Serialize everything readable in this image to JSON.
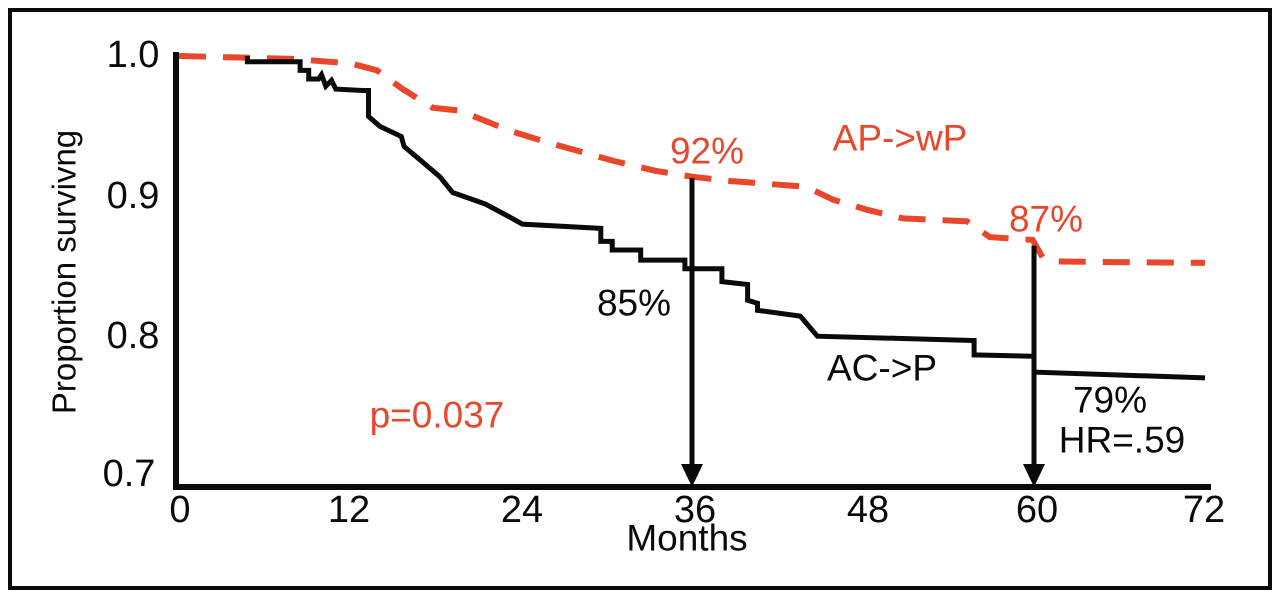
{
  "figure": {
    "y_axis": {
      "label": "Proportion survivng",
      "ticks": [
        "1.0",
        "0.9",
        "0.8",
        "0.7"
      ]
    },
    "x_axis": {
      "label": "Months",
      "ticks": [
        "0",
        "12",
        "24",
        "36",
        "48",
        "60",
        "72"
      ]
    },
    "annotations": {
      "red_36_pct": "92%",
      "red_60_pct": "87%",
      "black_36_pct": "85%",
      "black_60_pct": "79%",
      "hazard_ratio": "HR=.59",
      "p_value": "p=0.037",
      "red_series": "AP->wP",
      "black_series": "AC->P"
    },
    "colors": {
      "red": "#E8472C",
      "black": "#0a0a0a"
    }
  },
  "chart_data": {
    "type": "line",
    "subtype": "kaplan-meier-step",
    "xlabel": "Months",
    "ylabel": "Proportion survivng",
    "xlim": [
      0,
      72
    ],
    "ylim": [
      0.7,
      1.0
    ],
    "x_ticks": [
      0,
      12,
      24,
      36,
      48,
      60,
      72
    ],
    "y_ticks": [
      1.0,
      0.9,
      0.8,
      0.7
    ],
    "grid": false,
    "legend_position": "inline-labels",
    "p_value": 0.037,
    "hazard_ratio": 0.59,
    "annotations": [
      {
        "text": "92%",
        "series": "AP->wP",
        "x": 36,
        "y": 0.92,
        "color": "red"
      },
      {
        "text": "87%",
        "series": "AP->wP",
        "x": 60,
        "y": 0.87,
        "color": "red"
      },
      {
        "text": "85%",
        "series": "AC->P",
        "x": 36,
        "y": 0.85,
        "color": "black"
      },
      {
        "text": "79%",
        "series": "AC->P",
        "x": 60,
        "y": 0.79,
        "color": "black"
      },
      {
        "text": "HR=.59",
        "x": 62,
        "y": 0.77,
        "color": "black"
      },
      {
        "text": "p=0.037",
        "x": 14,
        "y": 0.745,
        "color": "red"
      }
    ],
    "series": [
      {
        "name": "AP->wP",
        "color": "#E8472C",
        "style": "dashed",
        "points": [
          [
            0,
            1.0
          ],
          [
            8.0,
            0.998
          ],
          [
            10.5,
            0.996
          ],
          [
            12.0,
            0.995
          ],
          [
            13.9,
            0.99
          ],
          [
            15.7,
            0.977
          ],
          [
            17.8,
            0.964
          ],
          [
            19.7,
            0.962
          ],
          [
            23.2,
            0.948
          ],
          [
            25.8,
            0.94
          ],
          [
            30.5,
            0.927
          ],
          [
            33.5,
            0.92
          ],
          [
            36.0,
            0.916
          ],
          [
            38.7,
            0.913
          ],
          [
            44.0,
            0.909
          ],
          [
            45.9,
            0.9
          ],
          [
            48.3,
            0.893
          ],
          [
            50.8,
            0.887
          ],
          [
            55.3,
            0.885
          ],
          [
            56.9,
            0.874
          ],
          [
            59.9,
            0.872
          ],
          [
            60.6,
            0.86
          ],
          [
            61.5,
            0.857
          ],
          [
            72.0,
            0.856
          ]
        ]
      },
      {
        "name": "AC->P",
        "color": "#0a0a0a",
        "style": "solid",
        "points": [
          [
            4.8,
            1.0
          ],
          [
            4.8,
            0.996
          ],
          [
            8.5,
            0.996
          ],
          [
            8.5,
            0.99
          ],
          [
            9.1,
            0.99
          ],
          [
            9.1,
            0.984
          ],
          [
            9.8,
            0.984
          ],
          [
            10.0,
            0.987
          ],
          [
            10.3,
            0.979
          ],
          [
            10.7,
            0.983
          ],
          [
            11.0,
            0.977
          ],
          [
            12.9,
            0.976
          ],
          [
            13.3,
            0.976
          ],
          [
            13.3,
            0.958
          ],
          [
            14.1,
            0.951
          ],
          [
            15.6,
            0.944
          ],
          [
            15.8,
            0.937
          ],
          [
            17.0,
            0.927
          ],
          [
            18.3,
            0.916
          ],
          [
            19.2,
            0.905
          ],
          [
            21.5,
            0.897
          ],
          [
            23.0,
            0.889
          ],
          [
            24.1,
            0.883
          ],
          [
            29.6,
            0.88
          ],
          [
            29.6,
            0.871
          ],
          [
            30.4,
            0.871
          ],
          [
            30.4,
            0.865
          ],
          [
            32.4,
            0.865
          ],
          [
            32.4,
            0.858
          ],
          [
            35.5,
            0.858
          ],
          [
            35.5,
            0.852
          ],
          [
            38.1,
            0.852
          ],
          [
            38.1,
            0.843
          ],
          [
            39.9,
            0.841
          ],
          [
            39.9,
            0.83
          ],
          [
            40.6,
            0.828
          ],
          [
            40.6,
            0.823
          ],
          [
            43.6,
            0.819
          ],
          [
            44.8,
            0.805
          ],
          [
            55.8,
            0.802
          ],
          [
            55.8,
            0.792
          ],
          [
            60.0,
            0.791
          ],
          [
            60.0,
            0.78
          ],
          [
            72.0,
            0.776
          ]
        ]
      }
    ],
    "markers": [
      {
        "type": "arrow-down",
        "x": 36,
        "y_top": 0.915
      },
      {
        "type": "arrow-down",
        "x": 60,
        "y_top": 0.868
      }
    ]
  }
}
